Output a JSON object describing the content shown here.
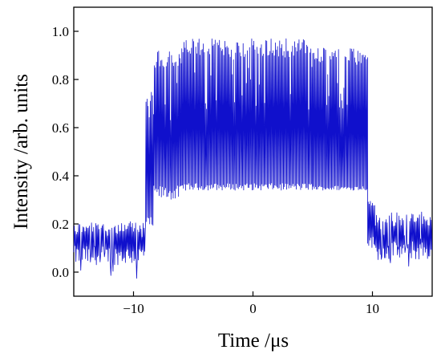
{
  "chart_data": {
    "type": "line",
    "xlabel": "Time /μs",
    "ylabel": "Intensity /arb. units",
    "xlim": [
      -15,
      15
    ],
    "ylim": [
      -0.1,
      1.1
    ],
    "xticks": [
      -10,
      0,
      10
    ],
    "xtick_labels": [
      "−10",
      "0",
      "10"
    ],
    "yticks": [
      0.0,
      0.2,
      0.4,
      0.6,
      0.8,
      1.0
    ],
    "ytick_labels": [
      "0.0",
      "0.2",
      "0.4",
      "0.6",
      "0.8",
      "1.0"
    ],
    "grid": false,
    "legend": false,
    "series": [
      {
        "color": "#1010cc",
        "segments": [
          {
            "x_start": -15.0,
            "x_end": -9.0,
            "low": 0.03,
            "high": 0.21,
            "low_band": 0.08,
            "high_band": 0.06
          },
          {
            "x_start": -9.0,
            "x_end": -8.3,
            "low": 0.18,
            "high": 0.75,
            "low_band": 0.05,
            "high_band": 0.1
          },
          {
            "x_start": -8.3,
            "x_end": -6.0,
            "low": 0.3,
            "high": 0.92,
            "low_band": 0.06,
            "high_band": 0.08
          },
          {
            "x_start": -6.0,
            "x_end": 5.0,
            "low": 0.34,
            "high": 0.97,
            "low_band": 0.03,
            "high_band": 0.08
          },
          {
            "x_start": 5.0,
            "x_end": 9.6,
            "low": 0.34,
            "high": 0.93,
            "low_band": 0.02,
            "high_band": 0.07
          },
          {
            "x_start": 9.6,
            "x_end": 10.2,
            "low": 0.1,
            "high": 0.3,
            "low_band": 0.05,
            "high_band": 0.03
          },
          {
            "x_start": 10.2,
            "x_end": 15.0,
            "low": 0.05,
            "high": 0.25,
            "low_band": 0.08,
            "high_band": 0.06
          }
        ]
      }
    ]
  }
}
